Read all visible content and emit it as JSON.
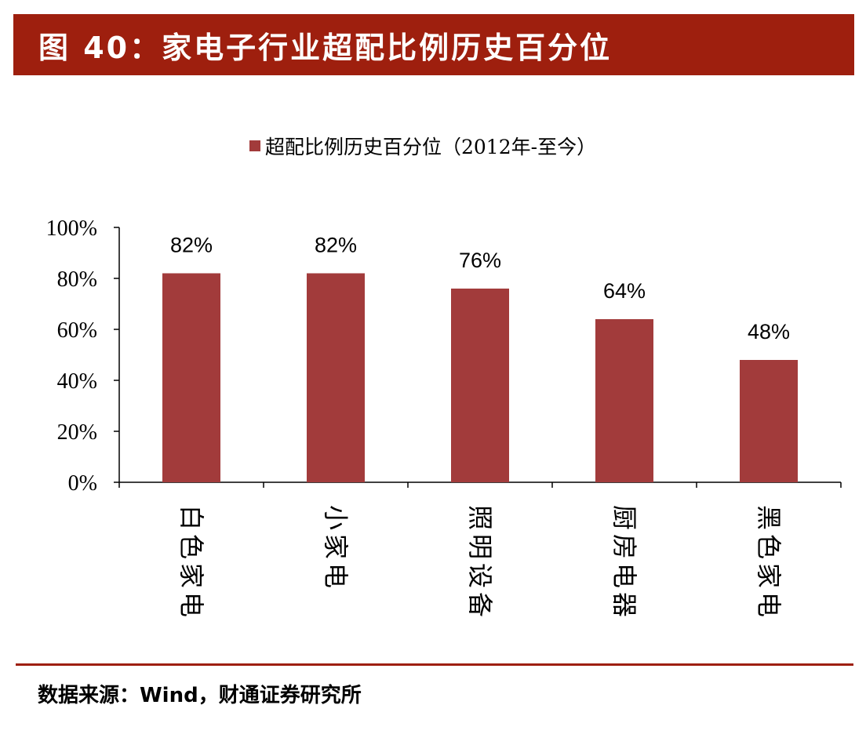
{
  "header": {
    "title": "图 40：家电子行业超配比例历史百分位"
  },
  "source": {
    "text": "数据来源：Wind，财通证券研究所"
  },
  "chart_data": {
    "type": "bar",
    "legend": {
      "label": "超配比例历史百分位（2012年-至今）",
      "position": "top-center",
      "color": "#a23b3b"
    },
    "categories": [
      "白色家电",
      "小家电",
      "照明设备",
      "厨房电器",
      "黑色家电"
    ],
    "series": [
      {
        "name": "超配比例历史百分位（2012年-至今）",
        "values": [
          82,
          82,
          76,
          64,
          48
        ],
        "color": "#a23b3b"
      }
    ],
    "data_labels": [
      "82%",
      "82%",
      "76%",
      "64%",
      "48%"
    ],
    "y_ticks": [
      "0%",
      "20%",
      "40%",
      "60%",
      "80%",
      "100%"
    ],
    "ylim": [
      0,
      100
    ],
    "grid": false
  }
}
